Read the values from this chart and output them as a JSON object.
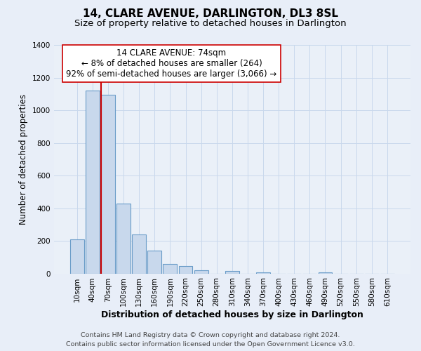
{
  "title": "14, CLARE AVENUE, DARLINGTON, DL3 8SL",
  "subtitle": "Size of property relative to detached houses in Darlington",
  "xlabel": "Distribution of detached houses by size in Darlington",
  "ylabel": "Number of detached properties",
  "footer_line1": "Contains HM Land Registry data © Crown copyright and database right 2024.",
  "footer_line2": "Contains public sector information licensed under the Open Government Licence v3.0.",
  "bar_labels": [
    "10sqm",
    "40sqm",
    "70sqm",
    "100sqm",
    "130sqm",
    "160sqm",
    "190sqm",
    "220sqm",
    "250sqm",
    "280sqm",
    "310sqm",
    "340sqm",
    "370sqm",
    "400sqm",
    "430sqm",
    "460sqm",
    "490sqm",
    "520sqm",
    "550sqm",
    "580sqm",
    "610sqm"
  ],
  "bar_values": [
    210,
    1120,
    1095,
    430,
    240,
    140,
    60,
    47,
    20,
    0,
    15,
    0,
    8,
    0,
    0,
    0,
    5,
    0,
    0,
    0,
    0
  ],
  "bar_color": "#c8d8ec",
  "bar_edge_color": "#6a9cc8",
  "vline_color": "#cc0000",
  "annotation_text": "14 CLARE AVENUE: 74sqm\n← 8% of detached houses are smaller (264)\n92% of semi-detached houses are larger (3,066) →",
  "annotation_box_edgecolor": "#cc0000",
  "annotation_box_facecolor": "#ffffff",
  "ylim": [
    0,
    1400
  ],
  "yticks": [
    0,
    200,
    400,
    600,
    800,
    1000,
    1200,
    1400
  ],
  "grid_color": "#c8d8ec",
  "background_color": "#e8eef8",
  "plot_bg_color": "#eaf0f8",
  "title_fontsize": 11,
  "subtitle_fontsize": 9.5,
  "xlabel_fontsize": 9,
  "ylabel_fontsize": 8.5,
  "tick_fontsize": 7.5,
  "annotation_fontsize": 8.5,
  "footer_fontsize": 6.8
}
